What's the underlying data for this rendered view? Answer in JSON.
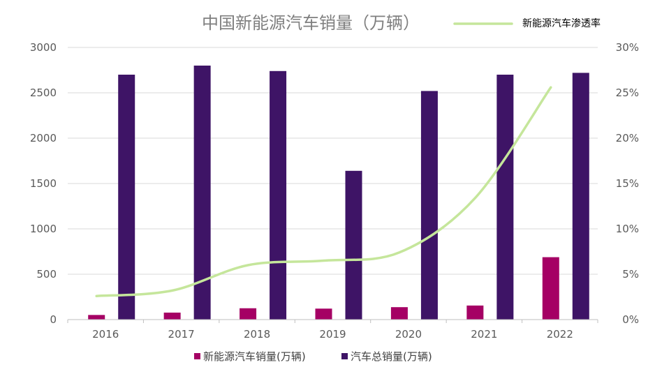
{
  "chart_data": {
    "type": "bar",
    "title": "中国新能源汽车销量（万辆）",
    "categories": [
      "2016",
      "2017",
      "2018",
      "2019",
      "2020",
      "2021",
      "2022"
    ],
    "series": [
      {
        "name": "新能源汽车销量(万辆)",
        "type": "bar",
        "axis": "left",
        "color": "#a50064",
        "values": [
          51,
          77,
          125,
          121,
          137,
          155,
          688
        ]
      },
      {
        "name": "汽车总销量(万辆)",
        "type": "bar",
        "axis": "left",
        "color": "#3e1466",
        "values": [
          2700,
          2800,
          2740,
          1640,
          2520,
          2700,
          2720
        ]
      },
      {
        "name": "新能源汽车渗透率",
        "type": "line",
        "axis": "right",
        "color": "#c5e69b",
        "values": [
          2.6,
          3.2,
          6.0,
          6.5,
          7.4,
          13.4,
          25.6
        ]
      }
    ],
    "y_left": {
      "min": 0,
      "max": 3000,
      "ticks": [
        "0",
        "500",
        "1000",
        "1500",
        "2000",
        "2500",
        "3000"
      ]
    },
    "y_right": {
      "min": 0,
      "max": 30,
      "ticks": [
        "0%",
        "5%",
        "10%",
        "15%",
        "20%",
        "25%",
        "30%"
      ]
    },
    "grid": "horizontal",
    "legend_line_position": "top-right",
    "legend_bars_position": "bottom"
  }
}
